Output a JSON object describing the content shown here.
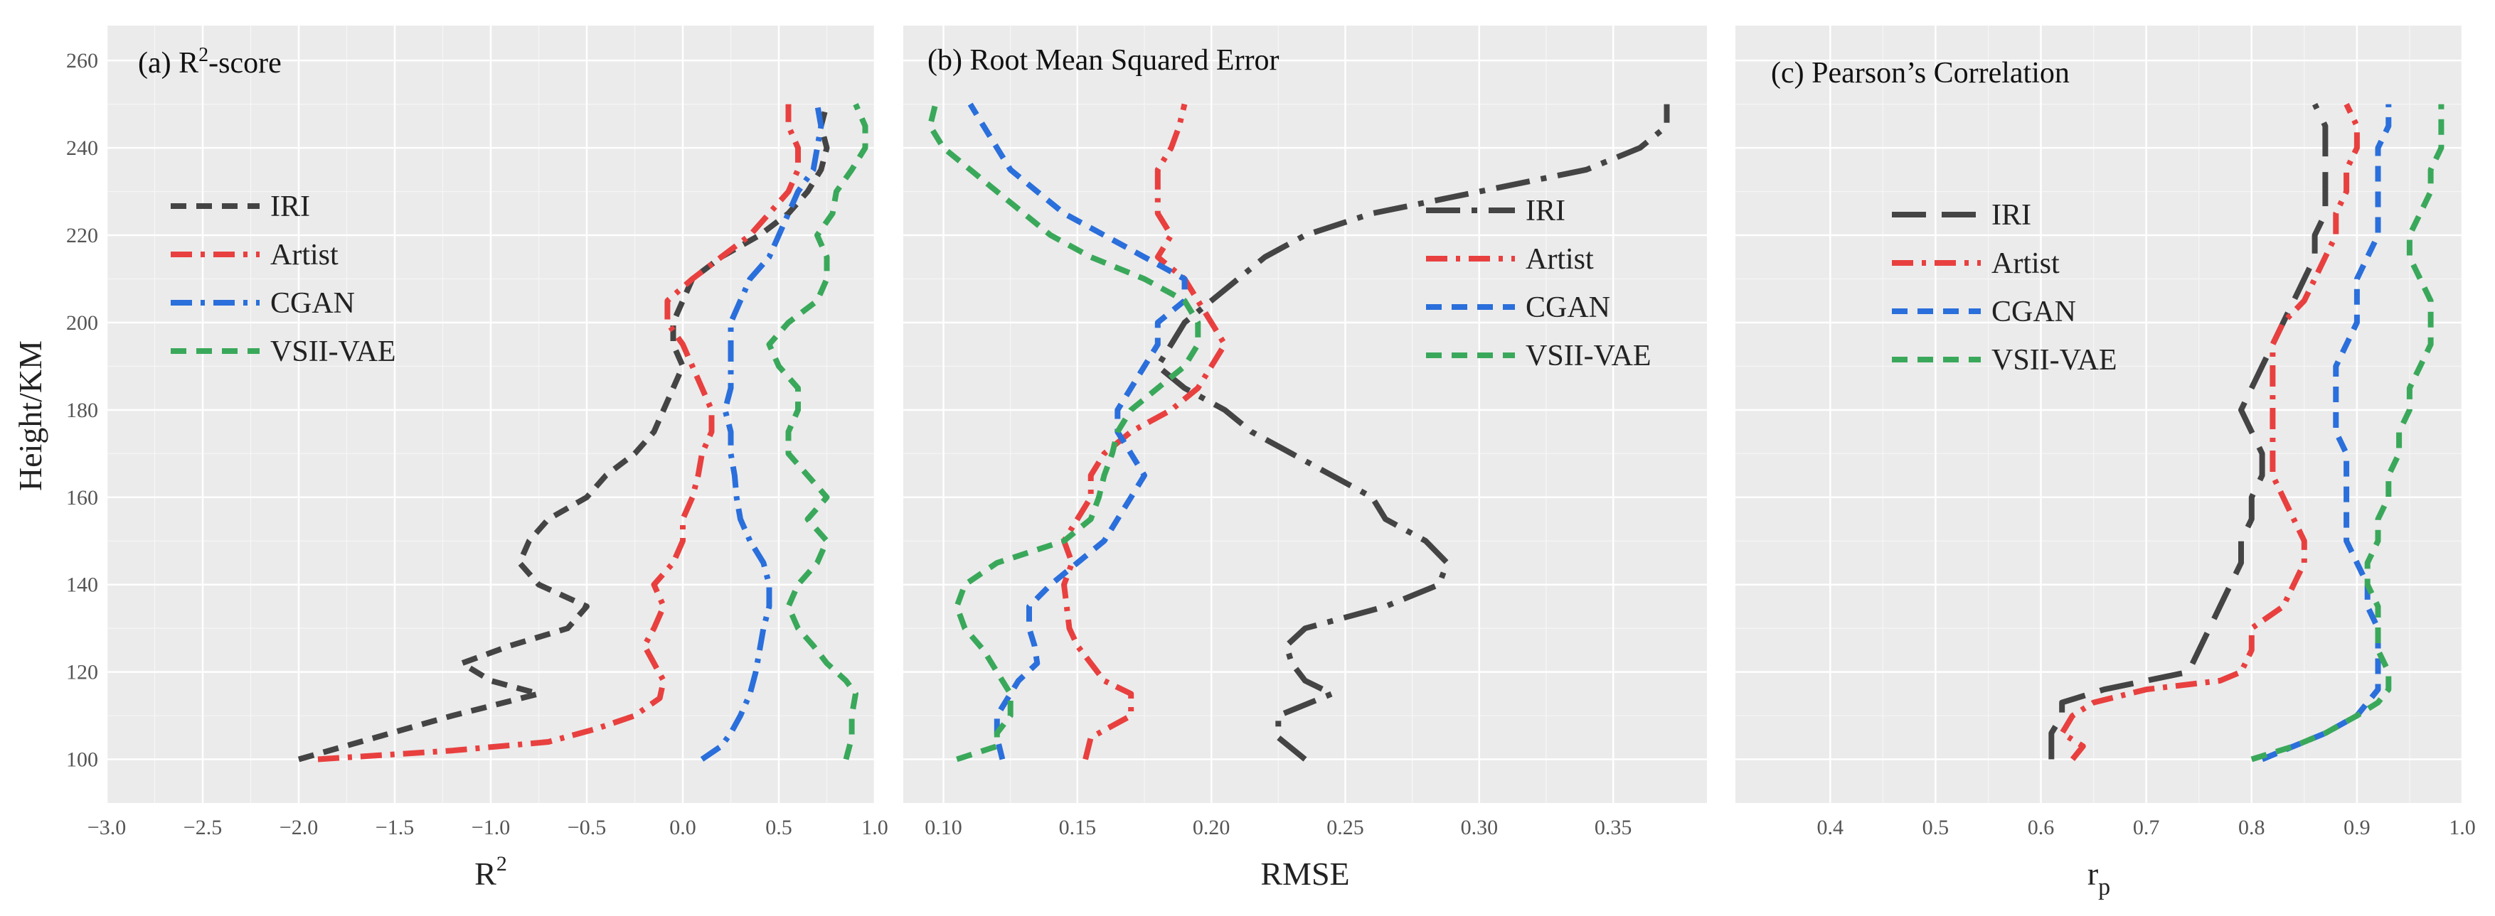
{
  "y_axis_label": "Height/KM",
  "colors": {
    "IRI": "#444444",
    "Artist": "#e8403f",
    "CGAN": "#2a6fdb",
    "VSII-VAE": "#3aa85a"
  },
  "chart_data": [
    {
      "type": "line",
      "prefix": "(a)",
      "title": "R",
      "title_sup": "2",
      "title_suffix": "-score",
      "xlabel": "R",
      "xlabel_sup": "2",
      "xlim": [
        -3.0,
        1.0
      ],
      "ylim": [
        90,
        268
      ],
      "xticks": [
        -3.0,
        -2.5,
        -2.0,
        -1.5,
        -1.0,
        -0.5,
        0.0,
        0.5,
        1.0
      ],
      "xtick_labels": [
        "−3.0",
        "−2.5",
        "−2.0",
        "−1.5",
        "−1.0",
        "−0.5",
        "0.0",
        "0.5",
        "1.0"
      ],
      "yticks": [
        100,
        120,
        140,
        160,
        180,
        200,
        220,
        240,
        260
      ],
      "ytick_labels": [
        "100",
        "120",
        "140",
        "160",
        "180",
        "200",
        "220",
        "240",
        "260"
      ],
      "legend_entries": [
        "IRI",
        "Artist",
        "CGAN",
        "VSII-VAE"
      ],
      "legend_position": "left",
      "series": [
        {
          "name": "IRI",
          "dash": "short-dash",
          "y": [
            100,
            105,
            110,
            115,
            118,
            122,
            126,
            130,
            135,
            140,
            145,
            150,
            155,
            160,
            165,
            170,
            175,
            180,
            185,
            190,
            195,
            200,
            205,
            210,
            215,
            220,
            225,
            230,
            235,
            240,
            245,
            250
          ],
          "x": [
            -2.0,
            -1.6,
            -1.2,
            -0.75,
            -1.0,
            -1.15,
            -0.9,
            -0.6,
            -0.5,
            -0.75,
            -0.85,
            -0.8,
            -0.7,
            -0.5,
            -0.4,
            -0.25,
            -0.15,
            -0.1,
            -0.05,
            0.0,
            -0.05,
            -0.05,
            0.0,
            0.05,
            0.2,
            0.4,
            0.55,
            0.65,
            0.72,
            0.75,
            0.72,
            0.75
          ]
        },
        {
          "name": "Artist",
          "dash": "dash-dot",
          "y": [
            100,
            102,
            104,
            107,
            110,
            114,
            118,
            122,
            126,
            130,
            135,
            140,
            145,
            150,
            155,
            160,
            165,
            170,
            175,
            180,
            185,
            190,
            195,
            200,
            205,
            210,
            215,
            220,
            225,
            230,
            235,
            240,
            245,
            250
          ],
          "x": [
            -1.9,
            -1.2,
            -0.7,
            -0.45,
            -0.25,
            -0.12,
            -0.1,
            -0.15,
            -0.2,
            -0.15,
            -0.1,
            -0.15,
            -0.05,
            0.0,
            0.0,
            0.05,
            0.08,
            0.1,
            0.15,
            0.15,
            0.1,
            0.05,
            0.0,
            -0.08,
            -0.08,
            0.05,
            0.2,
            0.35,
            0.45,
            0.55,
            0.6,
            0.6,
            0.55,
            0.55
          ]
        },
        {
          "name": "CGAN",
          "dash": "dash-dot",
          "y": [
            100,
            103,
            106,
            110,
            115,
            120,
            125,
            130,
            135,
            140,
            145,
            150,
            155,
            160,
            165,
            170,
            175,
            180,
            185,
            190,
            195,
            200,
            205,
            210,
            215,
            220,
            225,
            230,
            235,
            240,
            245,
            250
          ],
          "x": [
            0.1,
            0.2,
            0.25,
            0.3,
            0.35,
            0.38,
            0.4,
            0.42,
            0.45,
            0.45,
            0.42,
            0.35,
            0.3,
            0.28,
            0.27,
            0.25,
            0.25,
            0.22,
            0.25,
            0.25,
            0.25,
            0.25,
            0.3,
            0.35,
            0.45,
            0.5,
            0.55,
            0.6,
            0.68,
            0.7,
            0.72,
            0.7
          ]
        },
        {
          "name": "VSII-VAE",
          "dash": "short-dash",
          "y": [
            100,
            105,
            110,
            115,
            118,
            122,
            126,
            130,
            135,
            140,
            145,
            150,
            155,
            160,
            165,
            170,
            175,
            180,
            185,
            190,
            195,
            200,
            205,
            210,
            215,
            220,
            225,
            230,
            235,
            240,
            245,
            250
          ],
          "x": [
            0.85,
            0.88,
            0.88,
            0.9,
            0.85,
            0.75,
            0.68,
            0.6,
            0.55,
            0.6,
            0.7,
            0.75,
            0.65,
            0.75,
            0.65,
            0.55,
            0.55,
            0.6,
            0.6,
            0.5,
            0.45,
            0.55,
            0.7,
            0.75,
            0.75,
            0.7,
            0.78,
            0.8,
            0.88,
            0.95,
            0.95,
            0.9
          ]
        }
      ]
    },
    {
      "type": "line",
      "prefix": "(b)",
      "title": "Root Mean Squared Error",
      "xlabel": "RMSE",
      "xlim": [
        0.085,
        0.385
      ],
      "ylim": [
        90,
        268
      ],
      "xticks": [
        0.1,
        0.15,
        0.2,
        0.25,
        0.3,
        0.35
      ],
      "xtick_labels": [
        "0.10",
        "0.15",
        "0.20",
        "0.25",
        "0.30",
        "0.35"
      ],
      "yticks": [
        100,
        120,
        140,
        160,
        180,
        200,
        220,
        240,
        260
      ],
      "legend_entries": [
        "IRI",
        "Artist",
        "CGAN",
        "VSII-VAE"
      ],
      "legend_position": "right",
      "series": [
        {
          "name": "IRI",
          "dash": "long-dash-dot",
          "y": [
            100,
            105,
            110,
            115,
            118,
            122,
            126,
            130,
            135,
            140,
            145,
            150,
            155,
            160,
            165,
            170,
            175,
            180,
            185,
            190,
            195,
            200,
            205,
            210,
            215,
            220,
            225,
            230,
            235,
            240,
            245,
            250
          ],
          "x": [
            0.235,
            0.225,
            0.225,
            0.245,
            0.235,
            0.23,
            0.228,
            0.235,
            0.265,
            0.285,
            0.288,
            0.28,
            0.265,
            0.26,
            0.245,
            0.23,
            0.215,
            0.205,
            0.19,
            0.18,
            0.185,
            0.19,
            0.2,
            0.21,
            0.22,
            0.235,
            0.26,
            0.3,
            0.34,
            0.36,
            0.37,
            0.37
          ]
        },
        {
          "name": "Artist",
          "dash": "dash-dot",
          "y": [
            100,
            105,
            110,
            115,
            118,
            122,
            126,
            130,
            135,
            140,
            145,
            150,
            155,
            160,
            165,
            170,
            175,
            180,
            185,
            190,
            195,
            200,
            205,
            210,
            215,
            220,
            225,
            230,
            235,
            240,
            245,
            250
          ],
          "x": [
            0.153,
            0.155,
            0.17,
            0.17,
            0.16,
            0.155,
            0.15,
            0.147,
            0.146,
            0.145,
            0.148,
            0.145,
            0.15,
            0.155,
            0.155,
            0.16,
            0.17,
            0.185,
            0.195,
            0.2,
            0.205,
            0.2,
            0.195,
            0.19,
            0.18,
            0.185,
            0.18,
            0.18,
            0.18,
            0.185,
            0.188,
            0.19
          ]
        },
        {
          "name": "CGAN",
          "dash": "short-dash",
          "y": [
            100,
            105,
            110,
            115,
            118,
            122,
            126,
            130,
            135,
            140,
            145,
            150,
            155,
            160,
            165,
            170,
            175,
            180,
            185,
            190,
            195,
            200,
            205,
            210,
            215,
            220,
            225,
            230,
            235,
            240,
            245,
            250
          ],
          "x": [
            0.122,
            0.12,
            0.12,
            0.125,
            0.128,
            0.135,
            0.134,
            0.132,
            0.132,
            0.14,
            0.15,
            0.16,
            0.165,
            0.17,
            0.175,
            0.17,
            0.165,
            0.165,
            0.17,
            0.175,
            0.18,
            0.18,
            0.19,
            0.19,
            0.175,
            0.16,
            0.145,
            0.135,
            0.125,
            0.12,
            0.115,
            0.11
          ]
        },
        {
          "name": "VSII-VAE",
          "dash": "short-dash",
          "y": [
            100,
            103,
            106,
            110,
            115,
            120,
            125,
            130,
            135,
            140,
            145,
            150,
            155,
            160,
            165,
            170,
            175,
            180,
            185,
            190,
            195,
            200,
            205,
            210,
            215,
            220,
            225,
            230,
            235,
            240,
            245,
            250
          ],
          "x": [
            0.105,
            0.12,
            0.12,
            0.125,
            0.125,
            0.12,
            0.115,
            0.108,
            0.105,
            0.108,
            0.12,
            0.145,
            0.155,
            0.158,
            0.16,
            0.163,
            0.165,
            0.17,
            0.18,
            0.19,
            0.195,
            0.195,
            0.19,
            0.175,
            0.155,
            0.14,
            0.13,
            0.12,
            0.11,
            0.1,
            0.095,
            0.097
          ]
        }
      ]
    },
    {
      "type": "line",
      "prefix": "(c)",
      "title": "Pearson’s Correlation",
      "xlabel": "r",
      "xlabel_sub": "p",
      "xlim": [
        0.31,
        1.0
      ],
      "ylim": [
        90,
        268
      ],
      "xticks": [
        0.4,
        0.5,
        0.6,
        0.7,
        0.8,
        0.9,
        1.0
      ],
      "xtick_labels": [
        "0.4",
        "0.5",
        "0.6",
        "0.7",
        "0.8",
        "0.9",
        "1.0"
      ],
      "yticks": [
        100,
        120,
        140,
        160,
        180,
        200,
        220,
        240,
        260
      ],
      "legend_entries": [
        "IRI",
        "Artist",
        "CGAN",
        "VSII-VAE"
      ],
      "legend_position": "center-left",
      "series": [
        {
          "name": "IRI",
          "dash": "long-dash",
          "y": [
            100,
            103,
            106,
            110,
            113,
            116,
            118,
            120,
            125,
            130,
            135,
            140,
            145,
            150,
            155,
            160,
            165,
            170,
            175,
            180,
            185,
            190,
            195,
            200,
            205,
            210,
            215,
            220,
            225,
            230,
            235,
            240,
            245,
            250
          ],
          "x": [
            0.61,
            0.61,
            0.61,
            0.62,
            0.62,
            0.66,
            0.7,
            0.74,
            0.75,
            0.76,
            0.77,
            0.78,
            0.79,
            0.79,
            0.8,
            0.8,
            0.81,
            0.81,
            0.8,
            0.79,
            0.8,
            0.81,
            0.82,
            0.83,
            0.84,
            0.85,
            0.86,
            0.86,
            0.87,
            0.87,
            0.87,
            0.87,
            0.87,
            0.86
          ]
        },
        {
          "name": "Artist",
          "dash": "dash-dot",
          "y": [
            100,
            103,
            106,
            110,
            113,
            116,
            118,
            120,
            125,
            130,
            135,
            140,
            145,
            150,
            155,
            160,
            165,
            170,
            175,
            180,
            185,
            190,
            195,
            200,
            205,
            210,
            215,
            220,
            225,
            230,
            235,
            240,
            245,
            250
          ],
          "x": [
            0.63,
            0.64,
            0.62,
            0.63,
            0.65,
            0.7,
            0.77,
            0.79,
            0.8,
            0.8,
            0.83,
            0.84,
            0.85,
            0.85,
            0.84,
            0.83,
            0.82,
            0.82,
            0.82,
            0.82,
            0.82,
            0.82,
            0.82,
            0.83,
            0.85,
            0.86,
            0.87,
            0.88,
            0.88,
            0.89,
            0.89,
            0.9,
            0.9,
            0.89
          ]
        },
        {
          "name": "CGAN",
          "dash": "short-dash",
          "y": [
            100,
            103,
            106,
            110,
            113,
            116,
            118,
            120,
            125,
            130,
            135,
            140,
            145,
            150,
            155,
            160,
            165,
            170,
            175,
            180,
            185,
            190,
            195,
            200,
            205,
            210,
            215,
            220,
            225,
            230,
            235,
            240,
            245,
            250
          ],
          "x": [
            0.81,
            0.84,
            0.87,
            0.9,
            0.91,
            0.92,
            0.92,
            0.92,
            0.92,
            0.92,
            0.91,
            0.91,
            0.9,
            0.89,
            0.89,
            0.89,
            0.89,
            0.89,
            0.88,
            0.88,
            0.88,
            0.88,
            0.89,
            0.9,
            0.9,
            0.9,
            0.91,
            0.92,
            0.92,
            0.92,
            0.92,
            0.92,
            0.93,
            0.93
          ]
        },
        {
          "name": "VSII-VAE",
          "dash": "short-dash",
          "y": [
            100,
            103,
            106,
            110,
            113,
            116,
            118,
            120,
            125,
            130,
            135,
            140,
            145,
            150,
            155,
            160,
            165,
            170,
            175,
            180,
            185,
            190,
            195,
            200,
            205,
            210,
            215,
            220,
            225,
            230,
            235,
            240,
            245,
            250
          ],
          "x": [
            0.8,
            0.84,
            0.87,
            0.9,
            0.92,
            0.93,
            0.93,
            0.93,
            0.92,
            0.92,
            0.92,
            0.91,
            0.91,
            0.92,
            0.92,
            0.93,
            0.93,
            0.94,
            0.94,
            0.95,
            0.95,
            0.96,
            0.97,
            0.97,
            0.97,
            0.96,
            0.95,
            0.95,
            0.96,
            0.97,
            0.97,
            0.98,
            0.98,
            0.98
          ]
        }
      ]
    }
  ]
}
